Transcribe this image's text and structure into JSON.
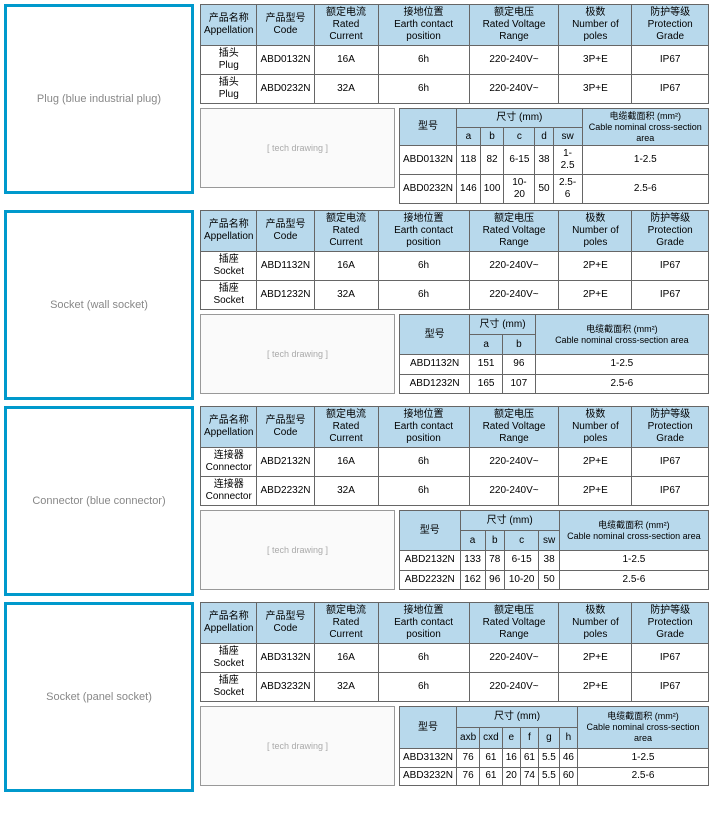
{
  "specHeaders": {
    "appellation": {
      "cn": "产品名称",
      "en": "Appellation"
    },
    "code": {
      "cn": "产品型号",
      "en": "Code"
    },
    "current": {
      "cn": "额定电流",
      "en": "Rated Current"
    },
    "earth": {
      "cn": "接地位置",
      "en": "Earth contact position"
    },
    "voltage": {
      "cn": "额定电压",
      "en": "Rated Voltage Range"
    },
    "poles": {
      "cn": "极数",
      "en": "Number of poles"
    },
    "protection": {
      "cn": "防护等级",
      "en": "Protection Grade"
    }
  },
  "dimHeaders": {
    "model": "型号",
    "size": "尺寸 (mm)",
    "cable": {
      "cn": "电缆截面积 (mm²)",
      "en": "Cable nominal cross-section area"
    },
    "cable2": {
      "cn": "电缆截面积 (mm²)",
      "en": "Cable nominal cross-section area"
    }
  },
  "sections": [
    {
      "imgLabel": "Plug\n(blue industrial plug)",
      "specRows": [
        {
          "app": "插头 Plug",
          "code": "ABD0132N",
          "cur": "16A",
          "earth": "6h",
          "volt": "220-240V~",
          "poles": "3P+E",
          "prot": "IP67"
        },
        {
          "app": "插头 Plug",
          "code": "ABD0232N",
          "cur": "32A",
          "earth": "6h",
          "volt": "220-240V~",
          "poles": "3P+E",
          "prot": "IP67"
        }
      ],
      "dimCols": [
        "a",
        "b",
        "c",
        "d",
        "sw"
      ],
      "dimRows": [
        {
          "code": "ABD0132N",
          "vals": [
            "118",
            "82",
            "6-15",
            "38",
            "1-2.5"
          ],
          "cable": "1-2.5"
        },
        {
          "code": "ABD0232N",
          "vals": [
            "146",
            "100",
            "10-20",
            "50",
            "2.5-6"
          ],
          "cable": "2.5-6"
        }
      ]
    },
    {
      "imgLabel": "Socket\n(wall socket)",
      "specRows": [
        {
          "app": "插座 Socket",
          "code": "ABD1132N",
          "cur": "16A",
          "earth": "6h",
          "volt": "220-240V~",
          "poles": "2P+E",
          "prot": "IP67"
        },
        {
          "app": "插座 Socket",
          "code": "ABD1232N",
          "cur": "32A",
          "earth": "6h",
          "volt": "220-240V~",
          "poles": "2P+E",
          "prot": "IP67"
        }
      ],
      "dimCols": [
        "a",
        "b"
      ],
      "dimRows": [
        {
          "code": "ABD1132N",
          "vals": [
            "151",
            "96"
          ],
          "cable": "1-2.5"
        },
        {
          "code": "ABD1232N",
          "vals": [
            "165",
            "107"
          ],
          "cable": "2.5-6"
        }
      ]
    },
    {
      "imgLabel": "Connector\n(blue connector)",
      "specRows": [
        {
          "app": "连接器 Connector",
          "code": "ABD2132N",
          "cur": "16A",
          "earth": "6h",
          "volt": "220-240V~",
          "poles": "2P+E",
          "prot": "IP67"
        },
        {
          "app": "连接器 Connector",
          "code": "ABD2232N",
          "cur": "32A",
          "earth": "6h",
          "volt": "220-240V~",
          "poles": "2P+E",
          "prot": "IP67"
        }
      ],
      "dimCols": [
        "a",
        "b",
        "c",
        "sw"
      ],
      "dimRows": [
        {
          "code": "ABD2132N",
          "vals": [
            "133",
            "78",
            "6-15",
            "38"
          ],
          "cable": "1-2.5"
        },
        {
          "code": "ABD2232N",
          "vals": [
            "162",
            "96",
            "10-20",
            "50"
          ],
          "cable": "2.5-6"
        }
      ]
    },
    {
      "imgLabel": "Socket\n(panel socket)",
      "specRows": [
        {
          "app": "插座 Socket",
          "code": "ABD3132N",
          "cur": "16A",
          "earth": "6h",
          "volt": "220-240V~",
          "poles": "2P+E",
          "prot": "IP67"
        },
        {
          "app": "插座 Socket",
          "code": "ABD3232N",
          "cur": "32A",
          "earth": "6h",
          "volt": "220-240V~",
          "poles": "2P+E",
          "prot": "IP67"
        }
      ],
      "dimCols": [
        "axb",
        "cxd",
        "e",
        "f",
        "g",
        "h"
      ],
      "dimRows": [
        {
          "code": "ABD3132N",
          "vals": [
            "76",
            "61",
            "16",
            "61",
            "5.5",
            "46"
          ],
          "cable": "1-2.5"
        },
        {
          "code": "ABD3232N",
          "vals": [
            "76",
            "61",
            "20",
            "74",
            "5.5",
            "60"
          ],
          "cable": "2.5-6"
        }
      ]
    }
  ],
  "colors": {
    "border": "#0099cc",
    "headerBg": "#b8d9ec",
    "cellBorder": "#666666"
  }
}
